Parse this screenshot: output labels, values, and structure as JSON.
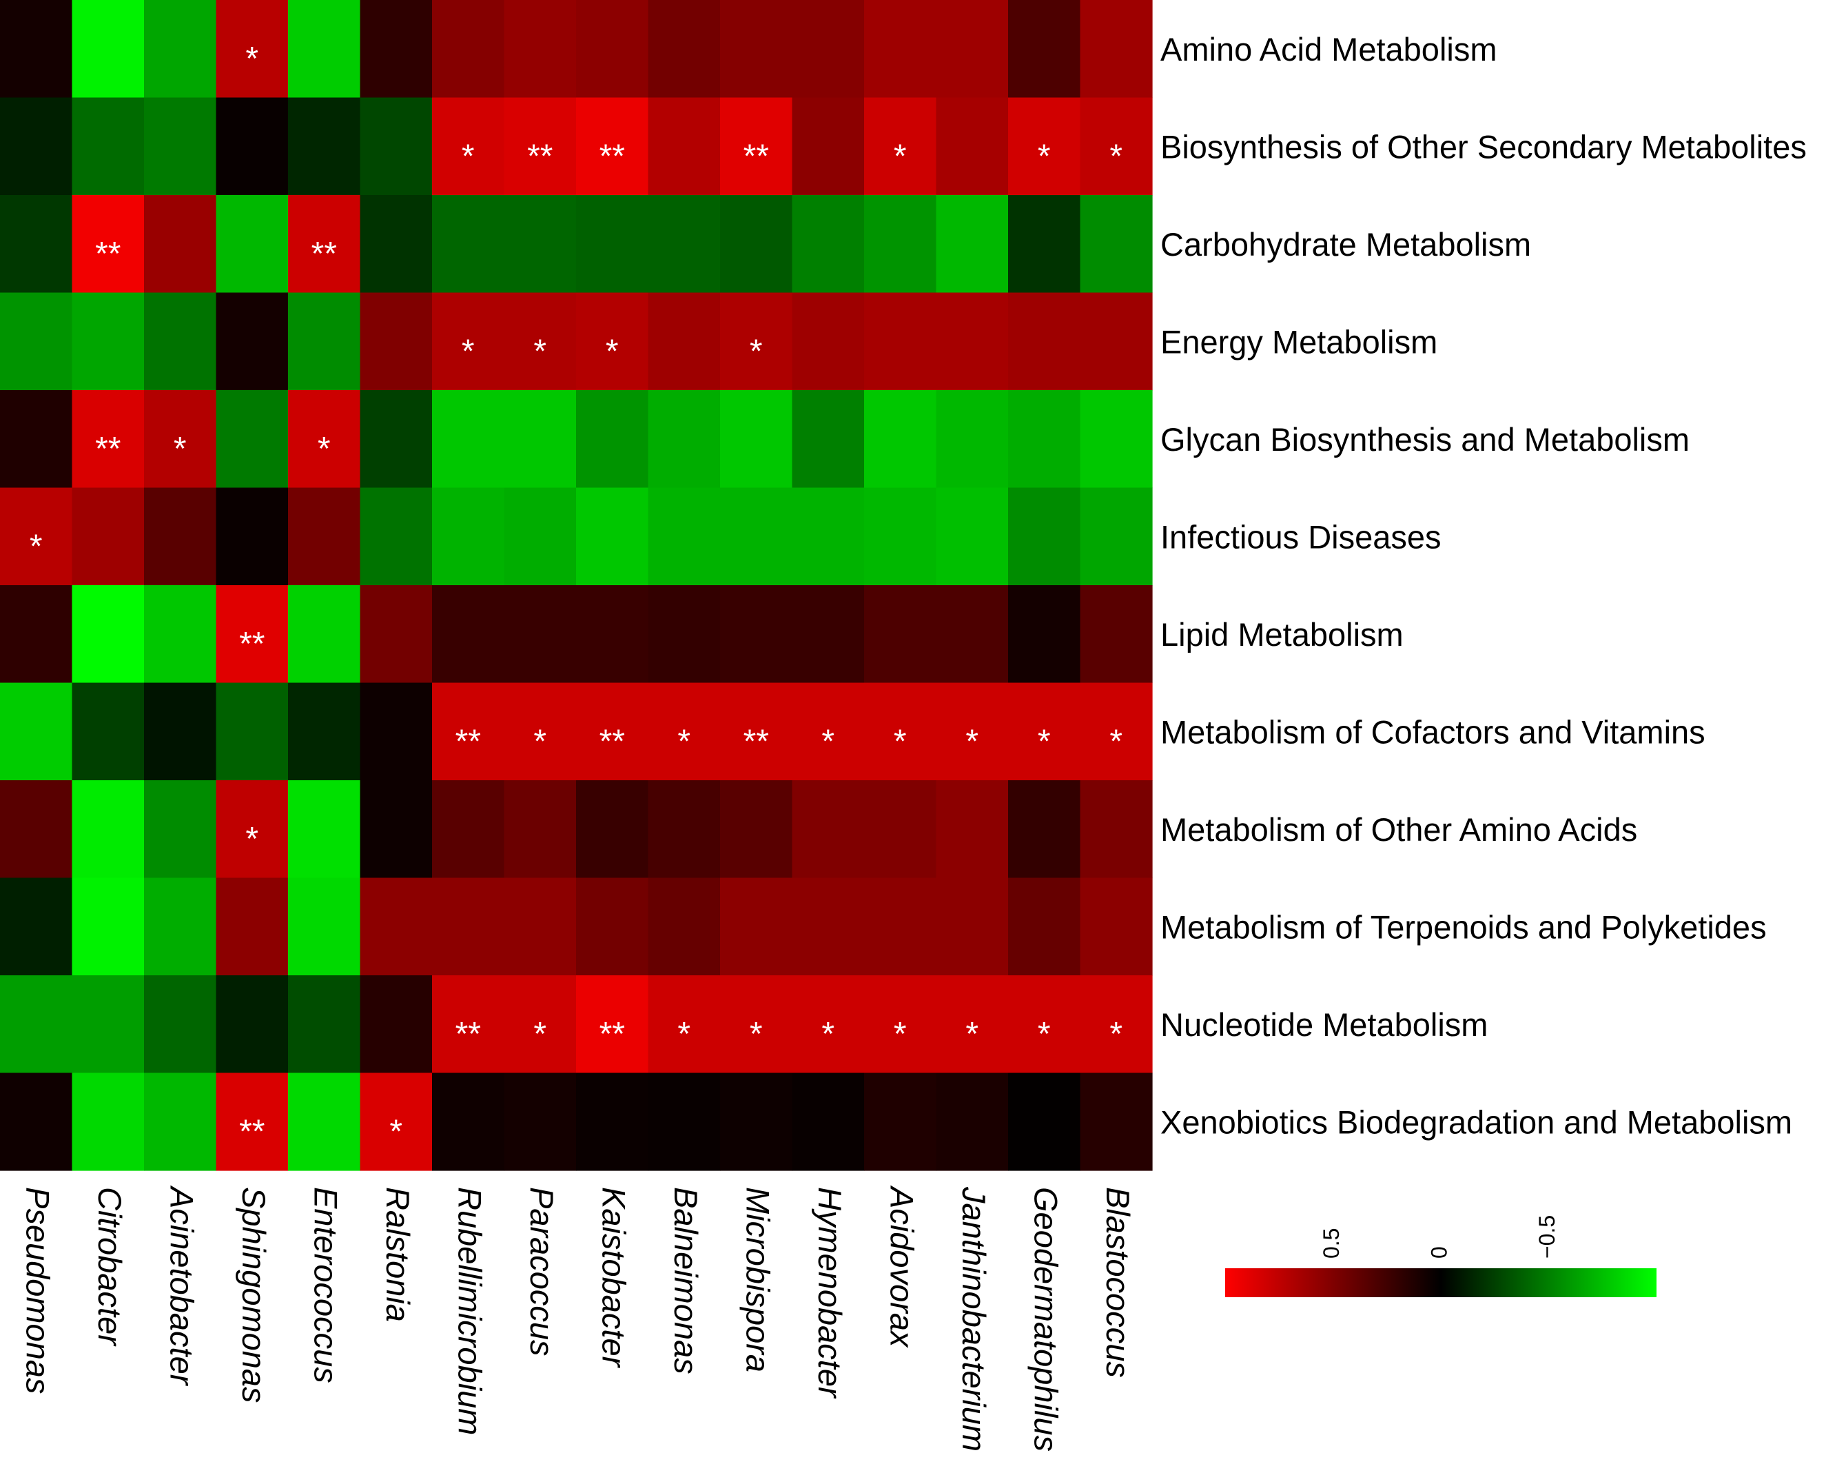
{
  "chart_data": {
    "type": "heatmap",
    "title": "",
    "rows": [
      "Amino Acid Metabolism",
      "Biosynthesis of Other Secondary Metabolites",
      "Carbohydrate Metabolism",
      "Energy Metabolism",
      "Glycan Biosynthesis and Metabolism",
      "Infectious Diseases",
      "Lipid Metabolism",
      "Metabolism of Cofactors and Vitamins",
      "Metabolism of Other Amino Acids",
      "Metabolism of Terpenoids and Polyketides",
      "Nucleotide Metabolism",
      "Xenobiotics Biodegradation and Metabolism"
    ],
    "columns": [
      "Pseudomonas",
      "Citrobacter",
      "Acinetobacter",
      "Sphingomonas",
      "Enterococcus",
      "Ralstonia",
      "Rubellimicrobium",
      "Paracoccus",
      "Kaistobacter",
      "Balneimonas",
      "Microbispora",
      "Hymenobacter",
      "Acidovorax",
      "Janthinobacterium",
      "Geodermatophilus",
      "Blastococcus"
    ],
    "values": [
      [
        0.08,
        -0.95,
        -0.65,
        0.72,
        -0.8,
        0.18,
        0.52,
        0.58,
        0.55,
        0.45,
        0.52,
        0.52,
        0.62,
        0.62,
        0.3,
        0.62
      ],
      [
        -0.12,
        -0.42,
        -0.48,
        0.03,
        -0.15,
        -0.28,
        0.82,
        0.85,
        0.92,
        0.7,
        0.88,
        0.55,
        0.8,
        0.65,
        0.82,
        0.75
      ],
      [
        -0.22,
        0.95,
        0.6,
        -0.72,
        0.8,
        -0.2,
        -0.4,
        -0.4,
        -0.38,
        -0.38,
        -0.35,
        -0.5,
        -0.58,
        -0.72,
        -0.2,
        -0.55
      ],
      [
        -0.58,
        -0.65,
        -0.45,
        0.08,
        -0.55,
        0.5,
        0.68,
        0.68,
        0.7,
        0.62,
        0.68,
        0.62,
        0.65,
        0.65,
        0.62,
        0.62
      ],
      [
        0.12,
        0.85,
        0.7,
        -0.48,
        0.8,
        -0.25,
        -0.78,
        -0.78,
        -0.58,
        -0.68,
        -0.78,
        -0.5,
        -0.78,
        -0.72,
        -0.68,
        -0.78
      ],
      [
        0.72,
        0.62,
        0.35,
        0.04,
        0.45,
        -0.45,
        -0.7,
        -0.68,
        -0.78,
        -0.7,
        -0.7,
        -0.7,
        -0.72,
        -0.75,
        -0.55,
        -0.65
      ],
      [
        0.18,
        -0.98,
        -0.78,
        0.88,
        -0.82,
        0.45,
        0.22,
        0.22,
        0.22,
        0.2,
        0.22,
        0.22,
        0.3,
        0.3,
        0.08,
        0.35
      ],
      [
        -0.8,
        -0.25,
        -0.08,
        -0.38,
        -0.15,
        0.05,
        0.8,
        0.8,
        0.8,
        0.8,
        0.8,
        0.8,
        0.8,
        0.8,
        0.8,
        0.8
      ],
      [
        0.35,
        -0.92,
        -0.55,
        0.75,
        -0.88,
        0.05,
        0.35,
        0.42,
        0.22,
        0.28,
        0.35,
        0.5,
        0.5,
        0.55,
        0.2,
        0.48
      ],
      [
        -0.12,
        -0.95,
        -0.68,
        0.55,
        -0.85,
        0.55,
        0.55,
        0.55,
        0.45,
        0.4,
        0.55,
        0.55,
        0.55,
        0.55,
        0.4,
        0.55
      ],
      [
        -0.62,
        -0.62,
        -0.4,
        -0.12,
        -0.3,
        0.15,
        0.8,
        0.8,
        0.92,
        0.8,
        0.8,
        0.8,
        0.8,
        0.8,
        0.8,
        0.8
      ],
      [
        0.06,
        -0.85,
        -0.72,
        0.85,
        -0.85,
        0.85,
        0.06,
        0.08,
        0.04,
        0.03,
        0.05,
        0.03,
        0.12,
        0.1,
        0.01,
        0.15
      ]
    ],
    "significance": [
      [
        "",
        "",
        "",
        "*",
        "",
        "",
        "",
        "",
        "",
        "",
        "",
        "",
        "",
        "",
        "",
        ""
      ],
      [
        "",
        "",
        "",
        "",
        "",
        "",
        "*",
        "**",
        "**",
        "",
        "**",
        "",
        "*",
        "",
        "*",
        "*"
      ],
      [
        "",
        "**",
        "",
        "",
        "**",
        "",
        "",
        "",
        "",
        "",
        "",
        "",
        "",
        "",
        "",
        ""
      ],
      [
        "",
        "",
        "",
        "",
        "",
        "",
        "*",
        "*",
        "*",
        "",
        "*",
        "",
        "",
        "",
        "",
        ""
      ],
      [
        "",
        "**",
        "*",
        "",
        "*",
        "",
        "",
        "",
        "",
        "",
        "",
        "",
        "",
        "",
        "",
        ""
      ],
      [
        "*",
        "",
        "",
        "",
        "",
        "",
        "",
        "",
        "",
        "",
        "",
        "",
        "",
        "",
        "",
        ""
      ],
      [
        "",
        "",
        "",
        "**",
        "",
        "",
        "",
        "",
        "",
        "",
        "",
        "",
        "",
        "",
        "",
        ""
      ],
      [
        "",
        "",
        "",
        "",
        "",
        "",
        "**",
        "*",
        "**",
        "*",
        "**",
        "*",
        "*",
        "*",
        "*",
        "*"
      ],
      [
        "",
        "",
        "",
        "*",
        "",
        "",
        "",
        "",
        "",
        "",
        "",
        "",
        "",
        "",
        "",
        ""
      ],
      [
        "",
        "",
        "",
        "",
        "",
        "",
        "",
        "",
        "",
        "",
        "",
        "",
        "",
        "",
        "",
        ""
      ],
      [
        "",
        "",
        "",
        "",
        "",
        "",
        "**",
        "*",
        "**",
        "*",
        "*",
        "*",
        "*",
        "*",
        "*",
        "*"
      ],
      [
        "",
        "",
        "",
        "**",
        "",
        "*",
        "",
        "",
        "",
        "",
        "",
        "",
        "",
        "",
        "",
        ""
      ]
    ],
    "colorbar": {
      "ticks": [
        0.5,
        0,
        -0.5
      ],
      "tick_labels": [
        "0.5",
        "0",
        "−0.5"
      ],
      "range": [
        1,
        -1
      ],
      "colors": {
        "positive": "#ff0000",
        "zero": "#000000",
        "negative": "#00ff00"
      }
    }
  }
}
